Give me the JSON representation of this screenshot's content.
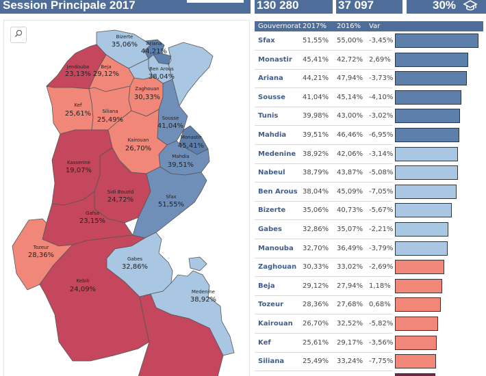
{
  "header": {
    "title": "Session Principale 2017",
    "kpi_1": "130 280",
    "kpi_2": "37 097",
    "kpi_3": "30%",
    "kpi_3_icon": "graduation-cap-icon"
  },
  "colors": {
    "header_bg": "#4e6d98",
    "dark_blue": "#5d7fab",
    "mid_blue": "#6f8fb9",
    "light_blue": "#a9c6e2",
    "salmon": "#f08778",
    "crimson": "#c4475d",
    "dark_crimson": "#7d2145"
  },
  "map": {
    "search_icon": "search-icon",
    "regions": [
      {
        "name": "Bizerte",
        "value": "35,06%"
      },
      {
        "name": "Ariana",
        "value": "44,21%"
      },
      {
        "name": "Jendouba",
        "value": "23,13%"
      },
      {
        "name": "Beja",
        "value": "29,12%"
      },
      {
        "name": "Ben Arous",
        "value": "38,04%"
      },
      {
        "name": "Zaghouan",
        "value": "30,33%"
      },
      {
        "name": "Kef",
        "value": "25,61%"
      },
      {
        "name": "Siliana",
        "value": "25,49%"
      },
      {
        "name": "Sousse",
        "value": "41,04%"
      },
      {
        "name": "Monastir",
        "value": "45,41%"
      },
      {
        "name": "Kairouan",
        "value": "26,70%"
      },
      {
        "name": "Mahdia",
        "value": "39,51%"
      },
      {
        "name": "Kasserine",
        "value": "19,07%"
      },
      {
        "name": "Sidi Bouzid",
        "value": "24,72%"
      },
      {
        "name": "Sfax",
        "value": "51,55%"
      },
      {
        "name": "Gafsa",
        "value": "23,15%"
      },
      {
        "name": "Tozeur",
        "value": "28,36%"
      },
      {
        "name": "Gabes",
        "value": "32,86%"
      },
      {
        "name": "Kebili",
        "value": "24,09%"
      },
      {
        "name": "Medenine",
        "value": "38,92%"
      }
    ]
  },
  "table": {
    "columns": [
      "Gouvernorat",
      "2017%",
      "2016%",
      "Var"
    ],
    "rows": [
      {
        "gouvernorat": "Sfax",
        "y2017": "51,55%",
        "y2016": "55,00%",
        "var": "-3,45%",
        "pct": 51.55,
        "color": "#5d7fab"
      },
      {
        "gouvernorat": "Monastir",
        "y2017": "45,41%",
        "y2016": "42,72%",
        "var": "2,69%",
        "pct": 45.41,
        "color": "#5d7fab"
      },
      {
        "gouvernorat": "Ariana",
        "y2017": "44,21%",
        "y2016": "47,94%",
        "var": "-3,73%",
        "pct": 44.21,
        "color": "#5d7fab"
      },
      {
        "gouvernorat": "Sousse",
        "y2017": "41,04%",
        "y2016": "45,14%",
        "var": "-4,10%",
        "pct": 41.04,
        "color": "#5d7fab"
      },
      {
        "gouvernorat": "Tunis",
        "y2017": "39,98%",
        "y2016": "43,00%",
        "var": "-3,02%",
        "pct": 39.98,
        "color": "#5d7fab"
      },
      {
        "gouvernorat": "Mahdia",
        "y2017": "39,51%",
        "y2016": "46,46%",
        "var": "-6,95%",
        "pct": 39.51,
        "color": "#5d7fab"
      },
      {
        "gouvernorat": "Medenine",
        "y2017": "38,92%",
        "y2016": "42,06%",
        "var": "-3,14%",
        "pct": 38.92,
        "color": "#a9c6e2"
      },
      {
        "gouvernorat": "Nabeul",
        "y2017": "38,79%",
        "y2016": "43,87%",
        "var": "-5,08%",
        "pct": 38.79,
        "color": "#a9c6e2"
      },
      {
        "gouvernorat": "Ben Arous",
        "y2017": "38,04%",
        "y2016": "45,09%",
        "var": "-7,05%",
        "pct": 38.04,
        "color": "#a9c6e2"
      },
      {
        "gouvernorat": "Bizerte",
        "y2017": "35,06%",
        "y2016": "40,73%",
        "var": "-5,67%",
        "pct": 35.06,
        "color": "#a9c6e2"
      },
      {
        "gouvernorat": "Gabes",
        "y2017": "32,86%",
        "y2016": "35,07%",
        "var": "-2,21%",
        "pct": 32.86,
        "color": "#a9c6e2"
      },
      {
        "gouvernorat": "Manouba",
        "y2017": "32,70%",
        "y2016": "36,49%",
        "var": "-3,79%",
        "pct": 32.7,
        "color": "#a9c6e2"
      },
      {
        "gouvernorat": "Zaghouan",
        "y2017": "30,33%",
        "y2016": "33,02%",
        "var": "-2,69%",
        "pct": 30.33,
        "color": "#f08778"
      },
      {
        "gouvernorat": "Beja",
        "y2017": "29,12%",
        "y2016": "27,94%",
        "var": "1,18%",
        "pct": 29.12,
        "color": "#f08778"
      },
      {
        "gouvernorat": "Tozeur",
        "y2017": "28,36%",
        "y2016": "27,68%",
        "var": "0,68%",
        "pct": 28.36,
        "color": "#f08778"
      },
      {
        "gouvernorat": "Kairouan",
        "y2017": "26,70%",
        "y2016": "32,52%",
        "var": "-5,82%",
        "pct": 26.7,
        "color": "#f08778"
      },
      {
        "gouvernorat": "Kef",
        "y2017": "25,61%",
        "y2016": "29,17%",
        "var": "-3,56%",
        "pct": 25.61,
        "color": "#f08778"
      },
      {
        "gouvernorat": "Siliana",
        "y2017": "25,49%",
        "y2016": "33,24%",
        "var": "-7,75%",
        "pct": 25.49,
        "color": "#f08778"
      },
      {
        "gouvernorat": "",
        "y2017": "",
        "y2016": "",
        "var": "",
        "pct": 24.72,
        "color": "#7d2145"
      }
    ]
  }
}
